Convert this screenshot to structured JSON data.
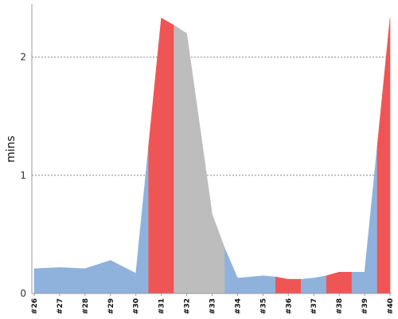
{
  "chart_data": {
    "type": "area",
    "ylabel": "mins",
    "xlabel": "",
    "title": "",
    "categories": [
      "#26",
      "#27",
      "#28",
      "#29",
      "#30",
      "#31",
      "#32",
      "#33",
      "#34",
      "#35",
      "#36",
      "#37",
      "#38",
      "#39",
      "#40"
    ],
    "ylim": [
      0,
      2.45
    ],
    "yticks": [
      0,
      1,
      2
    ],
    "grid": true,
    "colors": {
      "normal": "#8fb2dc",
      "highlight": "#f05555",
      "neutral": "#bdbdbd",
      "grid": "#777777",
      "axis": "#999999"
    },
    "points": [
      {
        "x": 26.0,
        "y": 0.21,
        "status": "normal"
      },
      {
        "x": 27.0,
        "y": 0.22,
        "status": "normal"
      },
      {
        "x": 28.0,
        "y": 0.21,
        "status": "normal"
      },
      {
        "x": 29.0,
        "y": 0.28,
        "status": "normal"
      },
      {
        "x": 30.0,
        "y": 0.17,
        "status": "normal"
      },
      {
        "x": 30.5,
        "y": 1.25,
        "status": "highlight"
      },
      {
        "x": 31.0,
        "y": 2.33,
        "status": "highlight"
      },
      {
        "x": 31.5,
        "y": 2.27,
        "status": "neutral"
      },
      {
        "x": 32.0,
        "y": 2.2,
        "status": "neutral"
      },
      {
        "x": 33.0,
        "y": 0.67,
        "status": "neutral"
      },
      {
        "x": 33.5,
        "y": 0.38,
        "status": "normal"
      },
      {
        "x": 34.0,
        "y": 0.13,
        "status": "normal"
      },
      {
        "x": 35.0,
        "y": 0.15,
        "status": "normal"
      },
      {
        "x": 35.5,
        "y": 0.14,
        "status": "highlight"
      },
      {
        "x": 36.0,
        "y": 0.12,
        "status": "highlight"
      },
      {
        "x": 36.5,
        "y": 0.12,
        "status": "normal"
      },
      {
        "x": 37.0,
        "y": 0.13,
        "status": "normal"
      },
      {
        "x": 37.5,
        "y": 0.15,
        "status": "highlight"
      },
      {
        "x": 38.0,
        "y": 0.18,
        "status": "highlight"
      },
      {
        "x": 38.5,
        "y": 0.18,
        "status": "normal"
      },
      {
        "x": 39.0,
        "y": 0.18,
        "status": "normal"
      },
      {
        "x": 39.5,
        "y": 1.25,
        "status": "highlight"
      },
      {
        "x": 40.0,
        "y": 2.33,
        "status": "highlight"
      }
    ]
  }
}
